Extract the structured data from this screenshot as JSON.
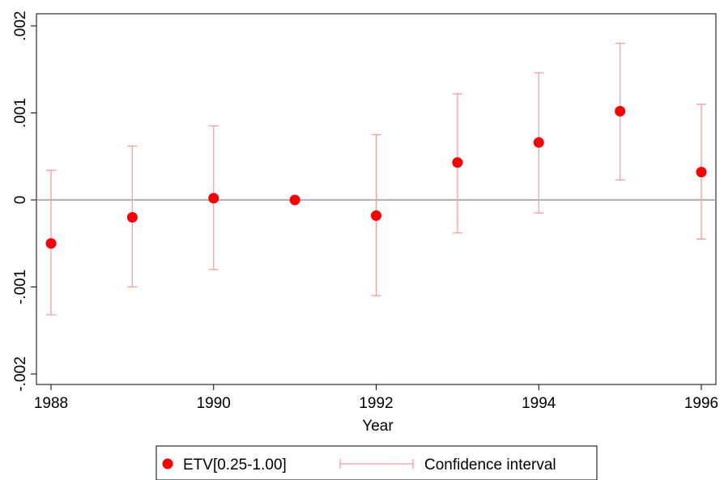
{
  "chart_data": {
    "type": "scatter",
    "title": "",
    "xlabel": "Year",
    "ylabel": "",
    "xlim": [
      1988,
      1996
    ],
    "ylim": [
      -0.002,
      0.002
    ],
    "x_ticks": [
      1988,
      1990,
      1992,
      1994,
      1996
    ],
    "x_tick_labels": [
      "1988",
      "1990",
      "1992",
      "1994",
      "1996"
    ],
    "y_ticks": [
      -0.002,
      -0.001,
      0,
      0.001,
      0.002
    ],
    "y_tick_labels": [
      "-.002",
      "-.001",
      "0",
      ".001",
      ".002"
    ],
    "reference_line_y": 0,
    "grid": false,
    "legend_position": "bottom",
    "series": [
      {
        "name": "ETV[0.25-1.00]",
        "color": "#ff0000",
        "x": [
          1988,
          1989,
          1990,
          1991,
          1992,
          1993,
          1994,
          1995,
          1996
        ],
        "y": [
          -0.0005,
          -0.0002,
          2e-05,
          0.0,
          -0.00018,
          0.00043,
          0.00066,
          0.00102,
          0.00032
        ]
      },
      {
        "name": "Confidence interval",
        "color": "#ff9c9c",
        "x": [
          1988,
          1989,
          1990,
          1991,
          1992,
          1993,
          1994,
          1995,
          1996
        ],
        "low": [
          -0.00132,
          -0.001,
          -0.0008,
          null,
          -0.0011,
          -0.00038,
          -0.00015,
          0.00023,
          -0.00045
        ],
        "high": [
          0.00034,
          0.00062,
          0.00085,
          null,
          0.00075,
          0.00122,
          0.00146,
          0.0018,
          0.0011
        ]
      }
    ]
  }
}
